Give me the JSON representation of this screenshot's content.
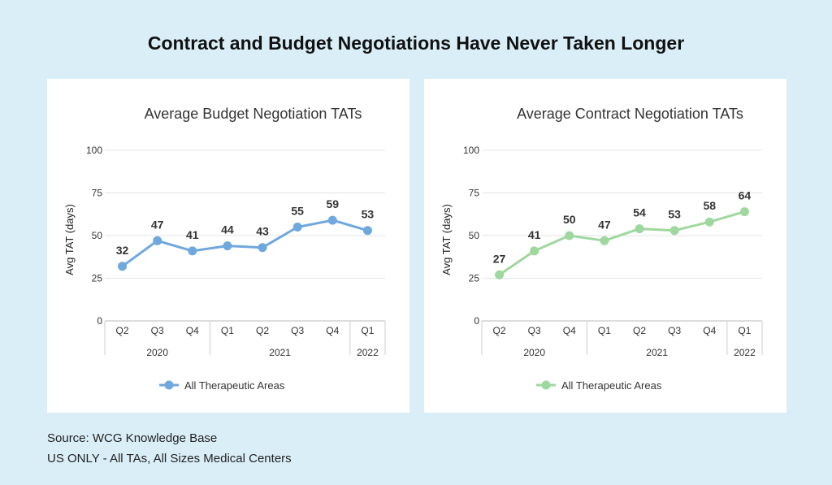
{
  "title": "Contract and Budget Negotiations Have Never Taken Longer",
  "footer": {
    "source": "Source: WCG Knowledge Base",
    "note": "US ONLY - All TAs, All Sizes Medical Centers"
  },
  "chart_data": [
    {
      "type": "line",
      "title": "Average Budget Negotiation TATs",
      "ylabel": "Avg TAT (days)",
      "xlabel": "",
      "ylim": [
        0,
        100
      ],
      "yticks": [
        0,
        25,
        50,
        75,
        100
      ],
      "grid": true,
      "legend_position": "bottom",
      "categories": [
        "Q2",
        "Q3",
        "Q4",
        "Q1",
        "Q2",
        "Q3",
        "Q4",
        "Q1"
      ],
      "year_groups": [
        {
          "label": "2020",
          "span": 3
        },
        {
          "label": "2021",
          "span": 4
        },
        {
          "label": "2022",
          "span": 1
        }
      ],
      "series": [
        {
          "name": "All Therapeutic Areas",
          "color": "#6fa8dc",
          "values": [
            32,
            47,
            41,
            44,
            43,
            55,
            59,
            53
          ]
        }
      ]
    },
    {
      "type": "line",
      "title": "Average Contract Negotiation TATs",
      "ylabel": "Avg TAT (days)",
      "xlabel": "",
      "ylim": [
        0,
        100
      ],
      "yticks": [
        0,
        25,
        50,
        75,
        100
      ],
      "grid": true,
      "legend_position": "bottom",
      "categories": [
        "Q2",
        "Q3",
        "Q4",
        "Q1",
        "Q2",
        "Q3",
        "Q4",
        "Q1"
      ],
      "year_groups": [
        {
          "label": "2020",
          "span": 3
        },
        {
          "label": "2021",
          "span": 4
        },
        {
          "label": "2022",
          "span": 1
        }
      ],
      "series": [
        {
          "name": "All Therapeutic Areas",
          "color": "#9fd89f",
          "values": [
            27,
            41,
            50,
            47,
            54,
            53,
            58,
            64
          ]
        }
      ]
    }
  ]
}
